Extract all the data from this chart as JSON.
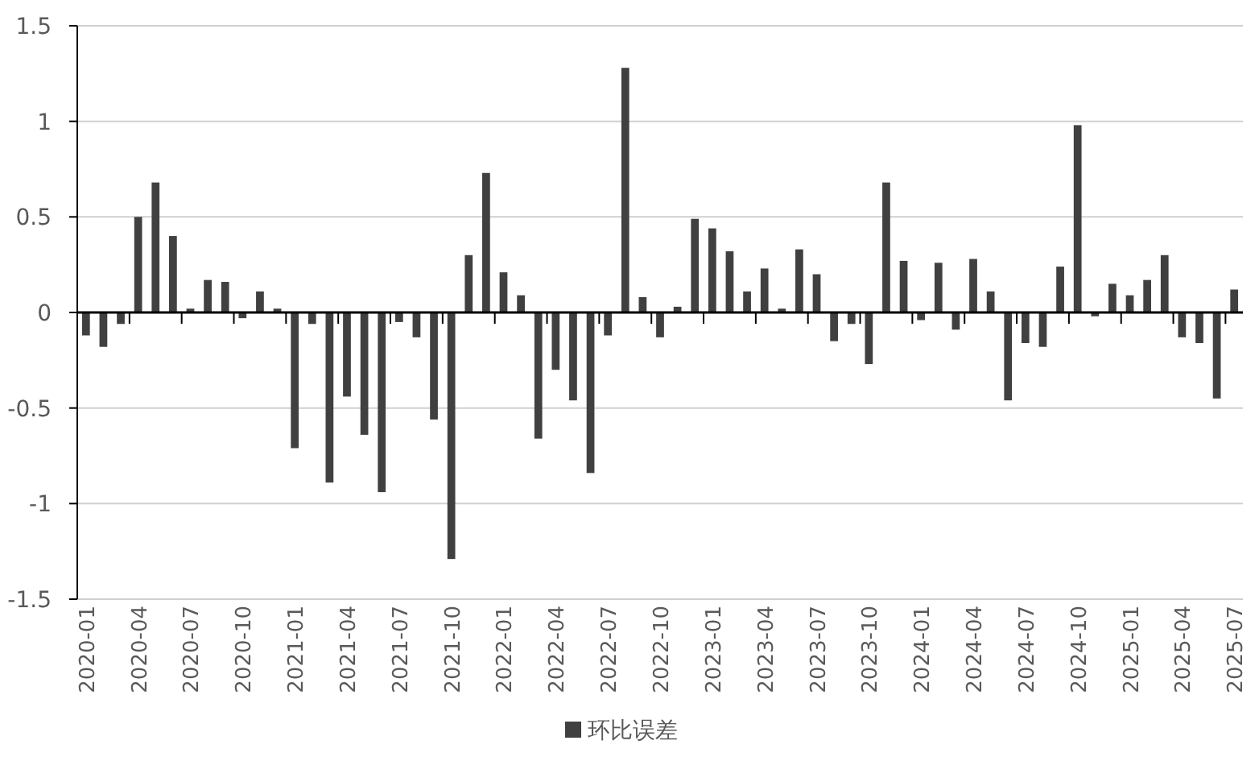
{
  "chart_data": {
    "type": "bar",
    "categories": [
      "2020-01",
      null,
      null,
      "2020-04",
      null,
      null,
      "2020-07",
      null,
      null,
      "2020-10",
      null,
      null,
      "2021-01",
      null,
      null,
      "2021-04",
      null,
      null,
      "2021-07",
      null,
      null,
      "2021-10",
      null,
      null,
      "2022-01",
      null,
      null,
      "2022-04",
      null,
      null,
      "2022-07",
      null,
      null,
      "2022-10",
      null,
      null,
      "2023-01",
      null,
      null,
      "2023-04",
      null,
      null,
      "2023-07",
      null,
      null,
      "2023-10",
      null,
      null,
      "2024-01",
      null,
      null,
      "2024-04",
      null,
      null,
      "2024-07",
      null,
      null,
      "2024-10",
      null,
      null,
      "2025-01",
      null,
      null,
      "2025-04",
      null,
      null,
      "2025-07"
    ],
    "series": [
      {
        "name": "环比误差",
        "color": "#404040",
        "values": [
          -0.12,
          -0.18,
          -0.06,
          0.5,
          0.68,
          0.4,
          0.02,
          0.17,
          0.16,
          -0.03,
          0.11,
          0.02,
          -0.71,
          -0.06,
          -0.89,
          -0.44,
          -0.64,
          -0.94,
          -0.05,
          -0.13,
          -0.56,
          -1.29,
          0.3,
          0.73,
          0.21,
          0.09,
          -0.66,
          -0.3,
          -0.46,
          -0.84,
          -0.12,
          1.28,
          0.08,
          -0.13,
          0.03,
          0.49,
          0.44,
          0.32,
          0.11,
          0.23,
          0.02,
          0.33,
          0.2,
          -0.15,
          -0.06,
          -0.27,
          0.68,
          0.27,
          -0.04,
          0.26,
          -0.09,
          0.28,
          0.11,
          -0.46,
          -0.16,
          -0.18,
          0.24,
          0.98,
          -0.02,
          0.15,
          0.09,
          0.17,
          0.3,
          -0.13,
          -0.16,
          -0.45,
          0.12
        ]
      }
    ],
    "ylim": [
      -1.5,
      1.5
    ],
    "yticks": [
      -1.5,
      -1,
      -0.5,
      0,
      0.5,
      1,
      1.5
    ],
    "grid": "y",
    "legend": "bottom"
  }
}
